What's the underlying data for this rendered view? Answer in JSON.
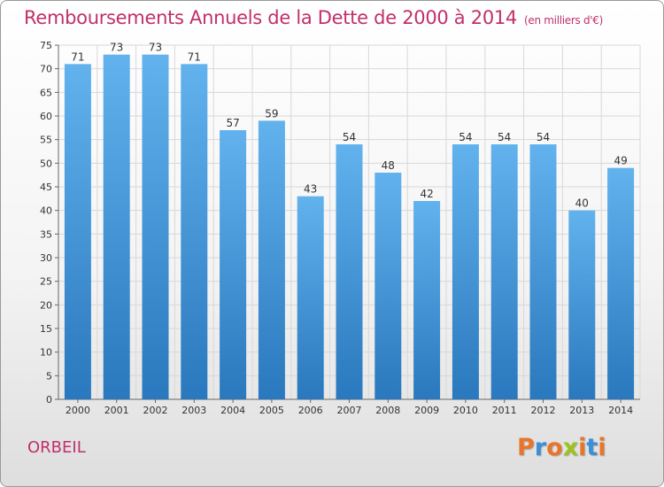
{
  "header": {
    "title": "Remboursements Annuels de la Dette de 2000 à 2014",
    "unit": "(en milliers d'€)"
  },
  "footer": {
    "town": "ORBEIL",
    "logo": "Proxiti"
  },
  "colors": {
    "title": "#c0306a",
    "bar_top": "#62b2ee",
    "bar_bottom": "#2a78bd",
    "grid": "#d8d8d8",
    "logo_letters": [
      "#e8752a",
      "#3a8fd8",
      "#e8752a",
      "#9bc31b",
      "#e8752a",
      "#3a8fd8",
      "#e8752a"
    ]
  },
  "chart_data": {
    "type": "bar",
    "title": "Remboursements Annuels de la Dette de 2000 à 2014",
    "subtitle": "(en milliers d'€)",
    "categories": [
      "2000",
      "2001",
      "2002",
      "2003",
      "2004",
      "2005",
      "2006",
      "2007",
      "2008",
      "2009",
      "2010",
      "2011",
      "2012",
      "2013",
      "2014"
    ],
    "values": [
      71,
      73,
      73,
      71,
      57,
      59,
      43,
      54,
      48,
      42,
      54,
      54,
      54,
      40,
      49
    ],
    "ylim": [
      0,
      75
    ],
    "yticks": [
      0,
      5,
      10,
      15,
      20,
      25,
      30,
      35,
      40,
      45,
      50,
      55,
      60,
      65,
      70,
      75
    ],
    "xlabel": "",
    "ylabel": "",
    "grid": true,
    "data_labels": true
  }
}
